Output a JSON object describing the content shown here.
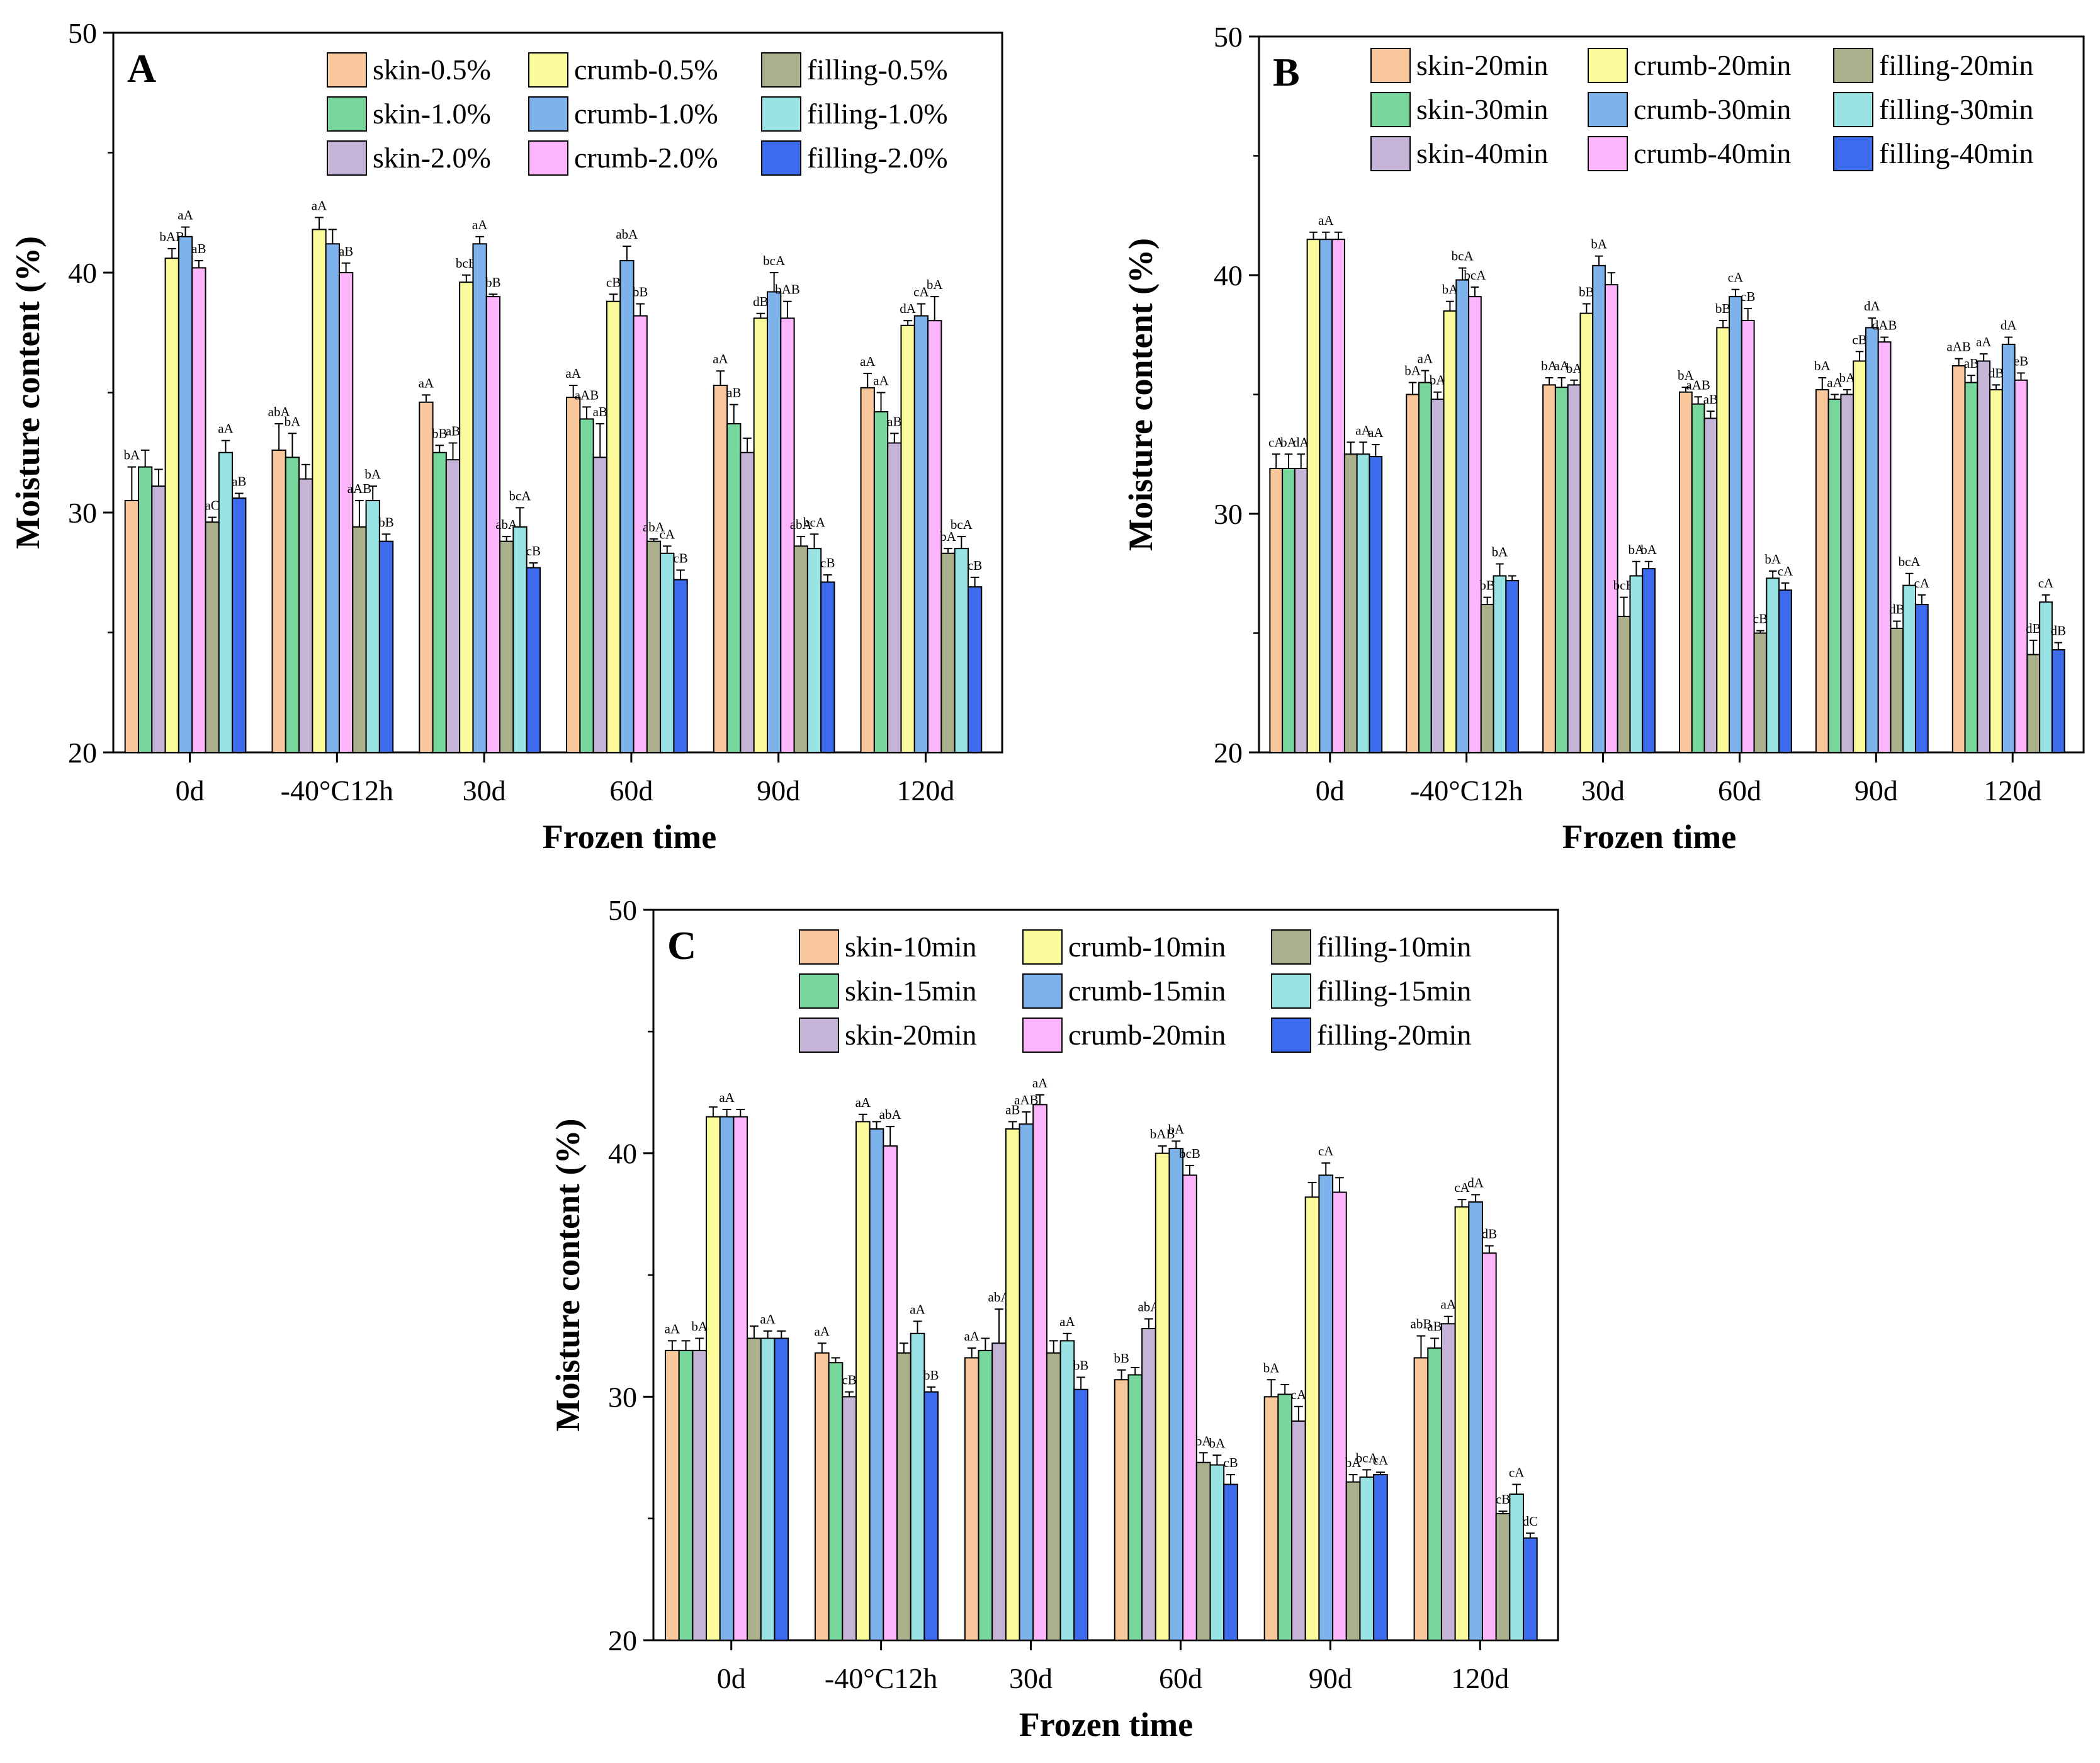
{
  "chart_data": [
    {
      "type": "bar",
      "panel_label": "A",
      "xlabel": "Frozen time",
      "ylabel": "Moisture content (%)",
      "ylim": [
        20,
        50
      ],
      "yticks": [
        "20",
        "30",
        "40",
        "50"
      ],
      "categories": [
        "0d",
        "-40°C12h",
        "30d",
        "60d",
        "90d",
        "120d"
      ],
      "series": [
        {
          "name": "skin-0.5%",
          "color": "#f8c79b",
          "values": [
            30.5,
            32.6,
            34.6,
            34.8,
            35.3,
            35.2
          ],
          "errors": [
            1.4,
            1.1,
            0.3,
            0.5,
            0.6,
            0.6
          ],
          "labels": [
            "bA",
            "abA",
            "aA",
            "aA",
            "aA",
            "aA"
          ]
        },
        {
          "name": "skin-1.0%",
          "color": "#77d69c",
          "values": [
            31.9,
            32.3,
            32.5,
            33.9,
            33.7,
            34.2
          ],
          "errors": [
            0.7,
            1.0,
            0.3,
            0.5,
            0.8,
            0.8
          ],
          "labels": [
            "",
            "bA",
            "bB",
            "aAB",
            "aB",
            "aA"
          ]
        },
        {
          "name": "skin-2.0%",
          "color": "#c6b4d8",
          "values": [
            31.1,
            31.4,
            32.2,
            32.3,
            32.5,
            32.9
          ],
          "errors": [
            0.7,
            0.6,
            0.7,
            1.4,
            0.6,
            0.4
          ],
          "labels": [
            "",
            "",
            "aB",
            "aB",
            "",
            "aB"
          ]
        },
        {
          "name": "crumb-0.5%",
          "color": "#fbfb9b",
          "values": [
            40.6,
            41.8,
            39.6,
            38.8,
            38.1,
            37.8
          ],
          "errors": [
            0.4,
            0.5,
            0.3,
            0.3,
            0.2,
            0.2
          ],
          "labels": [
            "bAB",
            "aA",
            "bcB",
            "cB",
            "dB",
            "dA"
          ]
        },
        {
          "name": "crumb-1.0%",
          "color": "#7eb2ea",
          "values": [
            41.5,
            41.2,
            41.2,
            40.5,
            39.2,
            38.2
          ],
          "errors": [
            0.4,
            0.6,
            0.3,
            0.6,
            0.8,
            0.5
          ],
          "labels": [
            "aA",
            "",
            "aA",
            "abA",
            "bcA",
            "cA"
          ]
        },
        {
          "name": "crumb-2.0%",
          "color": "#fdb6fc",
          "values": [
            40.2,
            40.0,
            39.0,
            38.2,
            38.1,
            38.0
          ],
          "errors": [
            0.3,
            0.4,
            0.1,
            0.5,
            0.7,
            1.0
          ],
          "labels": [
            "aB",
            "aB",
            "bB",
            "bB",
            "bAB",
            "bA"
          ]
        },
        {
          "name": "filling-0.5%",
          "color": "#a9b08b",
          "values": [
            29.6,
            29.4,
            28.8,
            28.8,
            28.6,
            28.3
          ],
          "errors": [
            0.2,
            1.1,
            0.2,
            0.1,
            0.4,
            0.2
          ],
          "labels": [
            "aC",
            "aAB",
            "abA",
            "abA",
            "abA",
            "bA"
          ]
        },
        {
          "name": "filling-1.0%",
          "color": "#9ae3e5",
          "values": [
            32.5,
            30.5,
            29.4,
            28.3,
            28.5,
            28.5
          ],
          "errors": [
            0.5,
            0.6,
            0.8,
            0.3,
            0.6,
            0.5
          ],
          "labels": [
            "aA",
            "bA",
            "bcA",
            "cA",
            "bcA",
            "bcA"
          ]
        },
        {
          "name": "filling-2.0%",
          "color": "#3d6bee",
          "values": [
            30.6,
            28.8,
            27.7,
            27.2,
            27.1,
            26.9
          ],
          "errors": [
            0.2,
            0.3,
            0.2,
            0.4,
            0.3,
            0.4
          ],
          "labels": [
            "aB",
            "bB",
            "cB",
            "cB",
            "cB",
            "cB"
          ]
        }
      ]
    },
    {
      "type": "bar",
      "panel_label": "B",
      "xlabel": "Frozen time",
      "ylabel": "Moisture content (%)",
      "ylim": [
        20,
        50
      ],
      "yticks": [
        "20",
        "30",
        "40",
        "50"
      ],
      "categories": [
        "0d",
        "-40°C12h",
        "30d",
        "60d",
        "90d",
        "120d"
      ],
      "series": [
        {
          "name": "skin-20min",
          "color": "#f8c79b",
          "values": [
            31.9,
            35.0,
            35.4,
            35.1,
            35.2,
            36.2
          ],
          "errors": [
            0.6,
            0.5,
            0.3,
            0.2,
            0.5,
            0.3
          ],
          "labels": [
            "cA",
            "bA",
            "bA",
            "bA",
            "bA",
            "aAB"
          ]
        },
        {
          "name": "skin-30min",
          "color": "#77d69c",
          "values": [
            31.9,
            35.5,
            35.3,
            34.6,
            34.8,
            35.5
          ],
          "errors": [
            0.6,
            0.5,
            0.4,
            0.3,
            0.2,
            0.3
          ],
          "labels": [
            "bA",
            "aA",
            "aA",
            "aAB",
            "aA",
            "aB"
          ]
        },
        {
          "name": "skin-40min",
          "color": "#c6b4d8",
          "values": [
            31.9,
            34.8,
            35.4,
            34.0,
            35.0,
            36.4
          ],
          "errors": [
            0.6,
            0.3,
            0.2,
            0.3,
            0.2,
            0.3
          ],
          "labels": [
            "dA",
            "bA",
            "bA",
            "aB",
            "bA",
            "aA"
          ]
        },
        {
          "name": "crumb-20min",
          "color": "#fbfb9b",
          "values": [
            41.5,
            38.5,
            38.4,
            37.8,
            36.4,
            35.2
          ],
          "errors": [
            0.3,
            0.4,
            0.4,
            0.3,
            0.4,
            0.2
          ],
          "labels": [
            "",
            "bA",
            "bB",
            "bB",
            "cB",
            "dB"
          ]
        },
        {
          "name": "crumb-30min",
          "color": "#7eb2ea",
          "values": [
            41.5,
            39.8,
            40.4,
            39.1,
            37.8,
            37.1
          ],
          "errors": [
            0.3,
            0.5,
            0.4,
            0.3,
            0.4,
            0.3
          ],
          "labels": [
            "aA",
            "bcA",
            "bA",
            "cA",
            "dA",
            "dA"
          ]
        },
        {
          "name": "crumb-40min",
          "color": "#fdb6fc",
          "values": [
            41.5,
            39.1,
            39.6,
            38.1,
            37.2,
            35.6
          ],
          "errors": [
            0.3,
            0.4,
            0.5,
            0.5,
            0.2,
            0.3
          ],
          "labels": [
            "",
            "bcA",
            "",
            "cB",
            "dAB",
            "eB"
          ]
        },
        {
          "name": "filling-20min",
          "color": "#a9b08b",
          "values": [
            32.5,
            26.2,
            25.7,
            25.0,
            25.2,
            24.1
          ],
          "errors": [
            0.5,
            0.3,
            0.8,
            0.1,
            0.3,
            0.6
          ],
          "labels": [
            "",
            "bB",
            "bcB",
            "cB",
            "dB",
            "dB"
          ]
        },
        {
          "name": "filling-30min",
          "color": "#9ae3e5",
          "values": [
            32.5,
            27.4,
            27.4,
            27.3,
            27.0,
            26.3
          ],
          "errors": [
            0.5,
            0.5,
            0.6,
            0.3,
            0.5,
            0.3
          ],
          "labels": [
            "aA",
            "bA",
            "bA",
            "bA",
            "bcA",
            "cA"
          ]
        },
        {
          "name": "filling-40min",
          "color": "#3d6bee",
          "values": [
            32.4,
            27.2,
            27.7,
            26.8,
            26.2,
            24.3
          ],
          "errors": [
            0.5,
            0.2,
            0.3,
            0.3,
            0.4,
            0.3
          ],
          "labels": [
            "aA",
            "",
            "bA",
            "cA",
            "cA",
            "dB"
          ]
        }
      ]
    },
    {
      "type": "bar",
      "panel_label": "C",
      "xlabel": "Frozen time",
      "ylabel": "Moisture content (%)",
      "ylim": [
        20,
        50
      ],
      "yticks": [
        "20",
        "30",
        "40",
        "50"
      ],
      "categories": [
        "0d",
        "-40°C12h",
        "30d",
        "60d",
        "90d",
        "120d"
      ],
      "series": [
        {
          "name": "skin-10min",
          "color": "#f8c79b",
          "values": [
            31.9,
            31.8,
            31.6,
            30.7,
            30.0,
            31.6
          ],
          "errors": [
            0.4,
            0.4,
            0.4,
            0.4,
            0.7,
            0.9
          ],
          "labels": [
            "aA",
            "aA",
            "aA",
            "bB",
            "bA",
            "abB"
          ]
        },
        {
          "name": "skin-15min",
          "color": "#77d69c",
          "values": [
            31.9,
            31.4,
            31.9,
            30.9,
            30.1,
            32.0
          ],
          "errors": [
            0.4,
            0.2,
            0.5,
            0.3,
            0.4,
            0.4
          ],
          "labels": [
            "",
            "",
            "",
            "",
            "",
            "aB"
          ]
        },
        {
          "name": "skin-20min",
          "color": "#c6b4d8",
          "values": [
            31.9,
            30.0,
            32.2,
            32.8,
            29.0,
            33.0
          ],
          "errors": [
            0.5,
            0.2,
            1.4,
            0.4,
            0.6,
            0.3
          ],
          "labels": [
            "bA",
            "cB",
            "abA",
            "abA",
            "cA",
            "aA"
          ]
        },
        {
          "name": "crumb-10min",
          "color": "#fbfb9b",
          "values": [
            41.5,
            41.3,
            41.0,
            40.0,
            38.2,
            37.8
          ],
          "errors": [
            0.4,
            0.3,
            0.3,
            0.3,
            0.6,
            0.3
          ],
          "labels": [
            "",
            "aA",
            "aB",
            "bAB",
            "",
            "cA"
          ]
        },
        {
          "name": "crumb-15min",
          "color": "#7eb2ea",
          "values": [
            41.5,
            41.0,
            41.2,
            40.2,
            39.1,
            38.0
          ],
          "errors": [
            0.3,
            0.3,
            0.5,
            0.3,
            0.5,
            0.3
          ],
          "labels": [
            "aA",
            "",
            "aAB",
            "bA",
            "cA",
            "dA"
          ]
        },
        {
          "name": "crumb-20min",
          "color": "#fdb6fc",
          "values": [
            41.5,
            40.3,
            42.0,
            39.1,
            38.4,
            35.9
          ],
          "errors": [
            0.3,
            0.8,
            0.4,
            0.4,
            0.6,
            0.3
          ],
          "labels": [
            "",
            "abA",
            "aA",
            "bcB",
            "",
            "dB"
          ]
        },
        {
          "name": "filling-10min",
          "color": "#a9b08b",
          "values": [
            32.4,
            31.8,
            31.8,
            27.3,
            26.5,
            25.2
          ],
          "errors": [
            0.5,
            0.4,
            0.5,
            0.4,
            0.3,
            0.1
          ],
          "labels": [
            "",
            "",
            "",
            "bA",
            "bA",
            "cB"
          ]
        },
        {
          "name": "filling-15min",
          "color": "#9ae3e5",
          "values": [
            32.4,
            32.6,
            32.3,
            27.2,
            26.7,
            26.0
          ],
          "errors": [
            0.3,
            0.5,
            0.3,
            0.4,
            0.3,
            0.4
          ],
          "labels": [
            "aA",
            "aA",
            "aA",
            "bA",
            "bcA",
            "cA"
          ]
        },
        {
          "name": "filling-20min",
          "color": "#3d6bee",
          "values": [
            32.4,
            30.2,
            30.3,
            26.4,
            26.8,
            24.2
          ],
          "errors": [
            0.3,
            0.2,
            0.5,
            0.4,
            0.1,
            0.2
          ],
          "labels": [
            "",
            "bB",
            "bB",
            "cB",
            "cA",
            "dC"
          ]
        }
      ]
    }
  ]
}
